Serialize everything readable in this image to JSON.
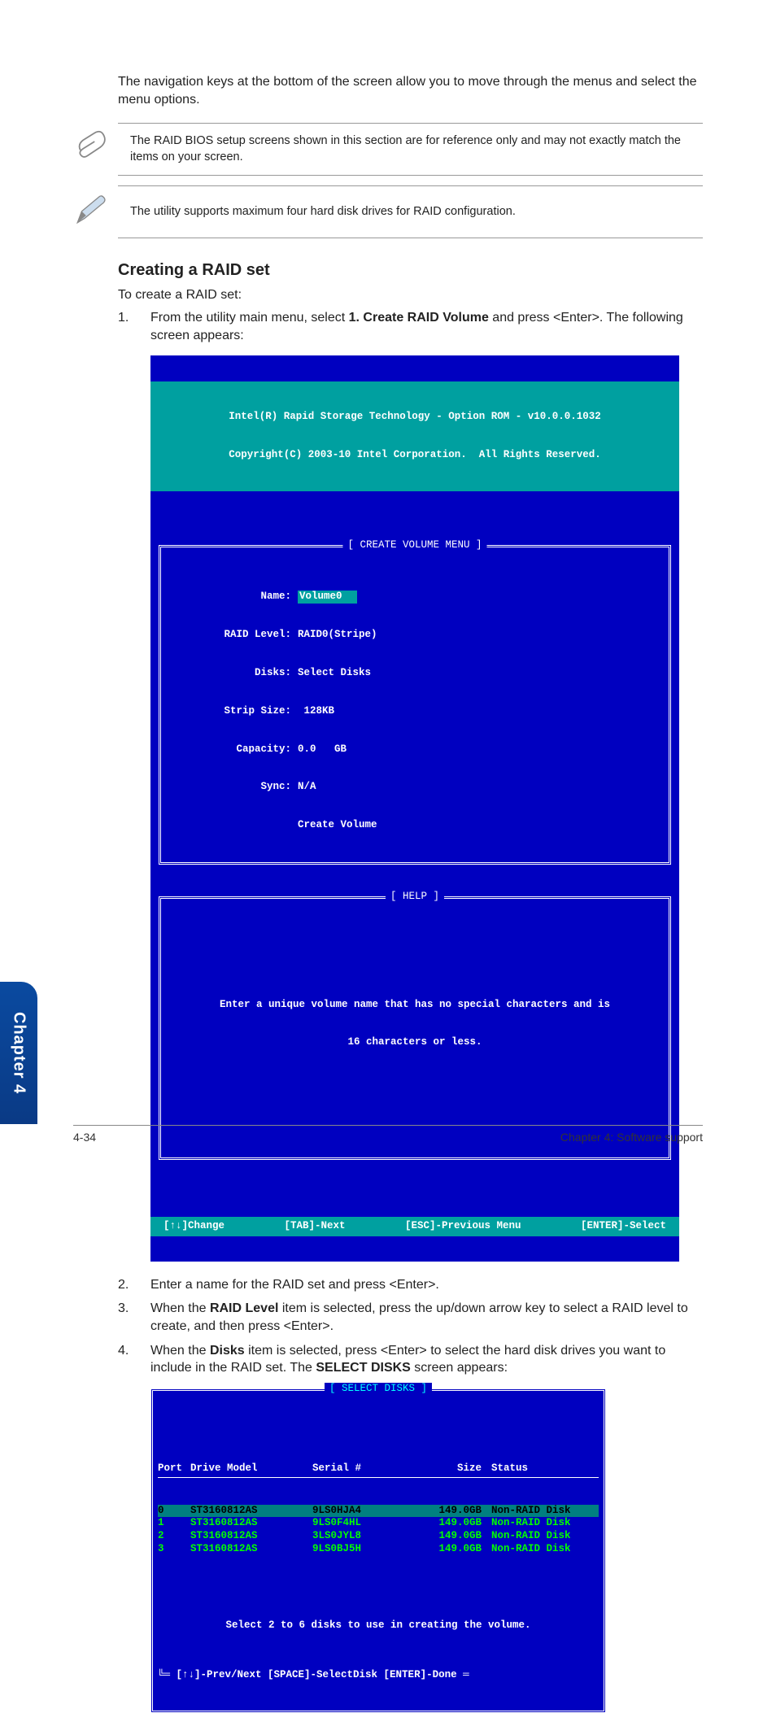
{
  "intro": "The navigation keys at the bottom of the screen allow you to move through the menus and select the menu options.",
  "notes": {
    "note1": "The RAID BIOS setup screens shown in this section are for reference only and may not exactly match the items on your screen.",
    "note2": "The utility supports maximum four hard disk drives for RAID configuration."
  },
  "heading": "Creating a RAID set",
  "subpara": "To create a RAID set:",
  "steps": {
    "s1_num": "1.",
    "s1_a": "From the utility main menu, select ",
    "s1_bold": "1. Create RAID Volume",
    "s1_b": " and press <Enter>. The following screen appears:",
    "s2_num": "2.",
    "s2": "Enter a name for the RAID set and press <Enter>.",
    "s3_num": "3.",
    "s3_a": "When the ",
    "s3_bold": "RAID Level",
    "s3_b": " item is selected, press the up/down arrow key to select a RAID level to create, and then press <Enter>.",
    "s4_num": "4.",
    "s4_a": "When the ",
    "s4_bold1": "Disks",
    "s4_b": " item is selected, press <Enter> to select the hard disk drives you want to include in the RAID set. The ",
    "s4_bold2": "SELECT DISKS",
    "s4_c": " screen appears:"
  },
  "bios1": {
    "header1": "Intel(R) Rapid Storage Technology - Option ROM - v10.0.0.1032",
    "header2": "Copyright(C) 2003-10 Intel Corporation.  All Rights Reserved.",
    "menu_title": "[ CREATE VOLUME MENU ]",
    "labels": {
      "name": "Name:",
      "raid": "RAID Level:",
      "disks": "Disks:",
      "strip": "Strip Size:",
      "cap": "Capacity:",
      "sync": "Sync:",
      "create": "Create Volume"
    },
    "values": {
      "name": "Volume0",
      "raid": "RAID0(Stripe)",
      "disks": "Select Disks",
      "strip": " 128KB",
      "cap": "0.0   GB",
      "sync": "N/A"
    },
    "help_title": "[ HELP ]",
    "help1": "Enter a unique volume name that has no special characters and is",
    "help2": "16 characters or less.",
    "footer": {
      "f1": "[↑↓]Change",
      "f2": "[TAB]-Next",
      "f3": "[ESC]-Previous Menu",
      "f4": "[ENTER]-Select"
    }
  },
  "bios2": {
    "title": "[ SELECT DISKS ]",
    "header": {
      "port": "Port",
      "model": "Drive Model",
      "serial": "Serial #",
      "size": "Size",
      "status": "Status"
    },
    "rows": [
      {
        "port": "0",
        "model": "ST3160812AS",
        "serial": "9LS0HJA4",
        "size": "149.0GB",
        "status": "Non-RAID Disk",
        "sel": true
      },
      {
        "port": "1",
        "model": "ST3160812AS",
        "serial": "9LS0F4HL",
        "size": "149.0GB",
        "status": "Non-RAID Disk",
        "sel": false
      },
      {
        "port": "2",
        "model": "ST3160812AS",
        "serial": "3LS0JYL8",
        "size": "149.0GB",
        "status": "Non-RAID Disk",
        "sel": false
      },
      {
        "port": "3",
        "model": "ST3160812AS",
        "serial": "9LS0BJ5H",
        "size": "149.0GB",
        "status": "Non-RAID Disk",
        "sel": false
      }
    ],
    "note": "Select 2 to 6 disks to use in creating the volume.",
    "footer": "[↑↓]-Prev/Next [SPACE]-SelectDisk [ENTER]-Done"
  },
  "sidetab": "Chapter 4",
  "footer": {
    "left": "4-34",
    "right": "Chapter 4: Software support"
  }
}
